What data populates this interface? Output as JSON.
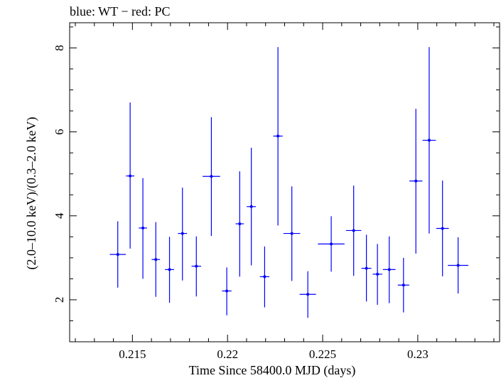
{
  "chart_data": {
    "type": "scatter",
    "title": "blue: WT − red: PC",
    "xlabel": "Time Since 58400.0 MJD (days)",
    "ylabel": "(2.0–10.0 keV)/(0.3–2.0 keV)",
    "xlim": [
      0.2117,
      0.2343
    ],
    "ylim": [
      1.0,
      8.6
    ],
    "x_ticks": [
      0.215,
      0.22,
      0.225,
      0.23
    ],
    "x_tick_labels": [
      "0.215",
      "0.22",
      "0.225",
      "0.23"
    ],
    "y_ticks": [
      2,
      4,
      6,
      8
    ],
    "y_tick_labels": [
      "2",
      "4",
      "6",
      "8"
    ],
    "grid": false,
    "colors": {
      "series": "#0000ff",
      "axes": "#000000",
      "background": "#ffffff"
    },
    "series": [
      {
        "color": "#0000ff",
        "points": [
          {
            "x": 0.21423,
            "xerr": 0.00042,
            "y": 3.08,
            "ylo": 2.29,
            "yhi": 3.87
          },
          {
            "x": 0.21488,
            "xerr": 0.00022,
            "y": 4.95,
            "ylo": 3.22,
            "yhi": 6.7
          },
          {
            "x": 0.21555,
            "xerr": 0.00022,
            "y": 3.71,
            "ylo": 2.5,
            "yhi": 4.9
          },
          {
            "x": 0.21623,
            "xerr": 0.00022,
            "y": 2.96,
            "ylo": 2.07,
            "yhi": 3.85
          },
          {
            "x": 0.21695,
            "xerr": 0.00024,
            "y": 2.72,
            "ylo": 1.93,
            "yhi": 3.5
          },
          {
            "x": 0.21763,
            "xerr": 0.00024,
            "y": 3.58,
            "ylo": 2.46,
            "yhi": 4.67
          },
          {
            "x": 0.21836,
            "xerr": 0.00025,
            "y": 2.8,
            "ylo": 2.08,
            "yhi": 3.51
          },
          {
            "x": 0.21915,
            "xerr": 0.00046,
            "y": 4.94,
            "ylo": 3.52,
            "yhi": 6.35
          },
          {
            "x": 0.21996,
            "xerr": 0.00025,
            "y": 2.21,
            "ylo": 1.63,
            "yhi": 2.77
          },
          {
            "x": 0.22064,
            "xerr": 0.00022,
            "y": 3.81,
            "ylo": 2.55,
            "yhi": 5.06
          },
          {
            "x": 0.22125,
            "xerr": 0.00024,
            "y": 4.22,
            "ylo": 2.82,
            "yhi": 5.62
          },
          {
            "x": 0.22195,
            "xerr": 0.00025,
            "y": 2.55,
            "ylo": 1.82,
            "yhi": 3.27
          },
          {
            "x": 0.22265,
            "xerr": 0.00025,
            "y": 5.9,
            "ylo": 3.77,
            "yhi": 8.02
          },
          {
            "x": 0.22338,
            "xerr": 0.00044,
            "y": 3.58,
            "ylo": 2.45,
            "yhi": 4.7
          },
          {
            "x": 0.22422,
            "xerr": 0.00043,
            "y": 2.13,
            "ylo": 1.57,
            "yhi": 2.68
          },
          {
            "x": 0.22545,
            "xerr": 0.0007,
            "y": 3.33,
            "ylo": 2.67,
            "yhi": 3.99
          },
          {
            "x": 0.22663,
            "xerr": 0.0004,
            "y": 3.65,
            "ylo": 2.57,
            "yhi": 4.72
          },
          {
            "x": 0.2273,
            "xerr": 0.00026,
            "y": 2.75,
            "ylo": 1.96,
            "yhi": 3.55
          },
          {
            "x": 0.22788,
            "xerr": 0.00025,
            "y": 2.61,
            "ylo": 1.88,
            "yhi": 3.33
          },
          {
            "x": 0.2285,
            "xerr": 0.00033,
            "y": 2.72,
            "ylo": 1.92,
            "yhi": 3.51
          },
          {
            "x": 0.22925,
            "xerr": 0.0003,
            "y": 2.35,
            "ylo": 1.7,
            "yhi": 3.0
          },
          {
            "x": 0.2299,
            "xerr": 0.00034,
            "y": 4.83,
            "ylo": 3.1,
            "yhi": 6.55
          },
          {
            "x": 0.2306,
            "xerr": 0.00035,
            "y": 5.8,
            "ylo": 3.58,
            "yhi": 8.02
          },
          {
            "x": 0.2313,
            "xerr": 0.00033,
            "y": 3.7,
            "ylo": 2.56,
            "yhi": 4.84
          },
          {
            "x": 0.23212,
            "xerr": 0.00054,
            "y": 2.82,
            "ylo": 2.15,
            "yhi": 3.49
          }
        ]
      }
    ]
  }
}
